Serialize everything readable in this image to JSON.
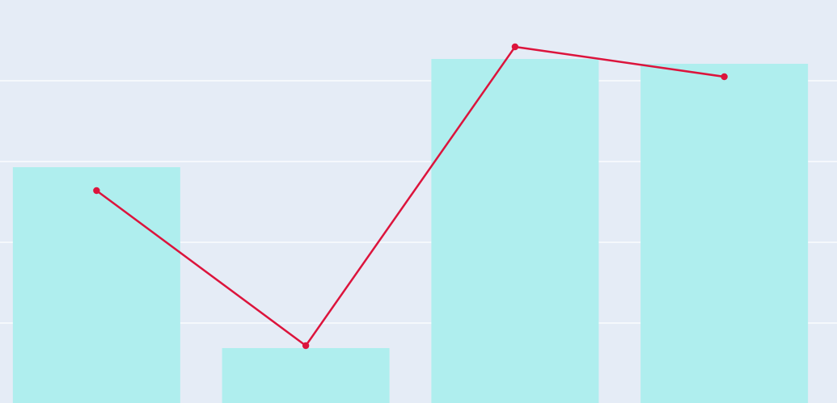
{
  "chart_data": {
    "type": "bar",
    "categories": [
      "",
      "",
      "",
      ""
    ],
    "series": [
      {
        "type": "bar",
        "values": [
          2.93,
          0.69,
          4.27,
          4.21
        ]
      },
      {
        "type": "line",
        "values": [
          2.64,
          0.72,
          4.42,
          4.05
        ]
      }
    ],
    "ylim": [
      -0.25,
      5
    ],
    "yticks": [
      0,
      1,
      2,
      3,
      4
    ],
    "grid": true,
    "legend": "none"
  },
  "colors": {
    "background": "#e5ecf6",
    "grid": "#ffffff",
    "bar": "#afeeee",
    "line": "#dc143c"
  }
}
